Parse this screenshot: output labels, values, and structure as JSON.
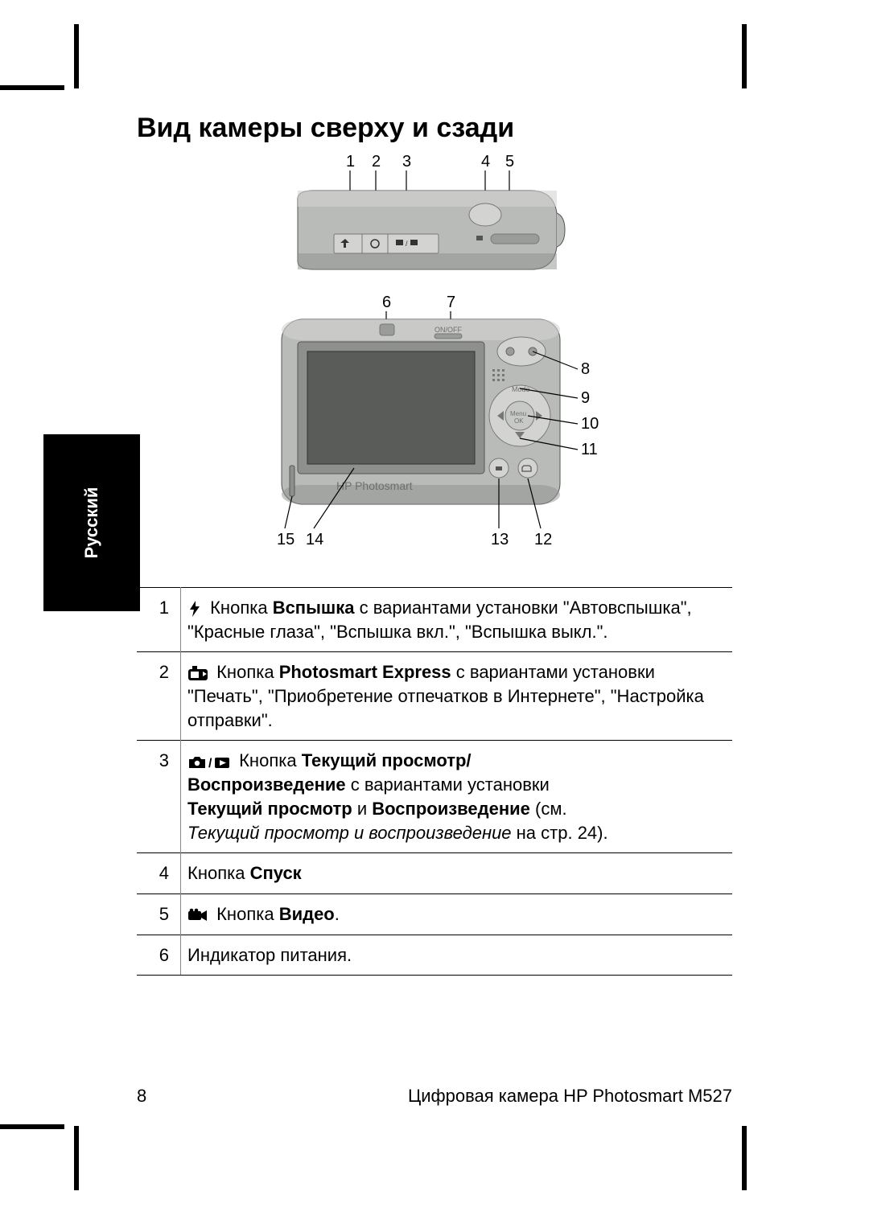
{
  "heading": "Вид камеры сверху и сзади",
  "sideTab": "Русский",
  "callouts": {
    "top": [
      "1",
      "2",
      "3",
      "4",
      "5"
    ],
    "right": [
      "8",
      "9",
      "10",
      "11"
    ],
    "bottom": [
      "15",
      "14",
      "13",
      "12"
    ],
    "mid": [
      "6",
      "7"
    ]
  },
  "diagram": {
    "bodyFill": "#b9bbb9",
    "bodyHighlight": "#d3d4d2",
    "bodyDark": "#8e908e",
    "screenFill": "#5a5c5a",
    "labelColor": "#6e6f6e",
    "brandText": "HP Photosmart",
    "onoffText": "ON/OFF",
    "menuText1": "Menu",
    "menuText2": "OK",
    "modeText": "Mode"
  },
  "rows": [
    {
      "n": "1",
      "icon": "flash",
      "parts": [
        {
          "t": " Кнопка "
        },
        {
          "t": "Вспышка",
          "b": true
        },
        {
          "t": " с вариантами установки \"Автовспышка\", \"Красные глаза\", \"Вспышка вкл.\", \"Вспышка выкл.\"."
        }
      ]
    },
    {
      "n": "2",
      "icon": "express",
      "parts": [
        {
          "t": " Кнопка "
        },
        {
          "t": "Photosmart Express",
          "b": true
        },
        {
          "t": " с вариантами установки \"Печать\", \"Приобретение отпечатков в Интернете\", \"Настройка отправки\"."
        }
      ]
    },
    {
      "n": "3",
      "icon": "camplay",
      "parts": [
        {
          "t": " Кнопка "
        },
        {
          "t": "Текущий просмотр/",
          "b": true
        },
        {
          "t": "\n"
        },
        {
          "t": "Воспроизведение",
          "b": true
        },
        {
          "t": " с вариантами установки "
        },
        {
          "t": "\n"
        },
        {
          "t": "Текущий просмотр",
          "b": true
        },
        {
          "t": " и "
        },
        {
          "t": "Воспроизведение",
          "b": true
        },
        {
          "t": " (см. "
        },
        {
          "t": "\n"
        },
        {
          "t": "Текущий просмотр и воспроизведение",
          "i": true
        },
        {
          "t": " на стр. 24)."
        }
      ]
    },
    {
      "n": "4",
      "parts": [
        {
          "t": "Кнопка "
        },
        {
          "t": "Спуск",
          "b": true
        }
      ]
    },
    {
      "n": "5",
      "icon": "video",
      "parts": [
        {
          "t": " Кнопка "
        },
        {
          "t": "Видео",
          "b": true
        },
        {
          "t": "."
        }
      ]
    },
    {
      "n": "6",
      "parts": [
        {
          "t": "Индикатор питания."
        }
      ]
    }
  ],
  "footer": {
    "page": "8",
    "title": "Цифровая камера HP Photosmart M527"
  }
}
